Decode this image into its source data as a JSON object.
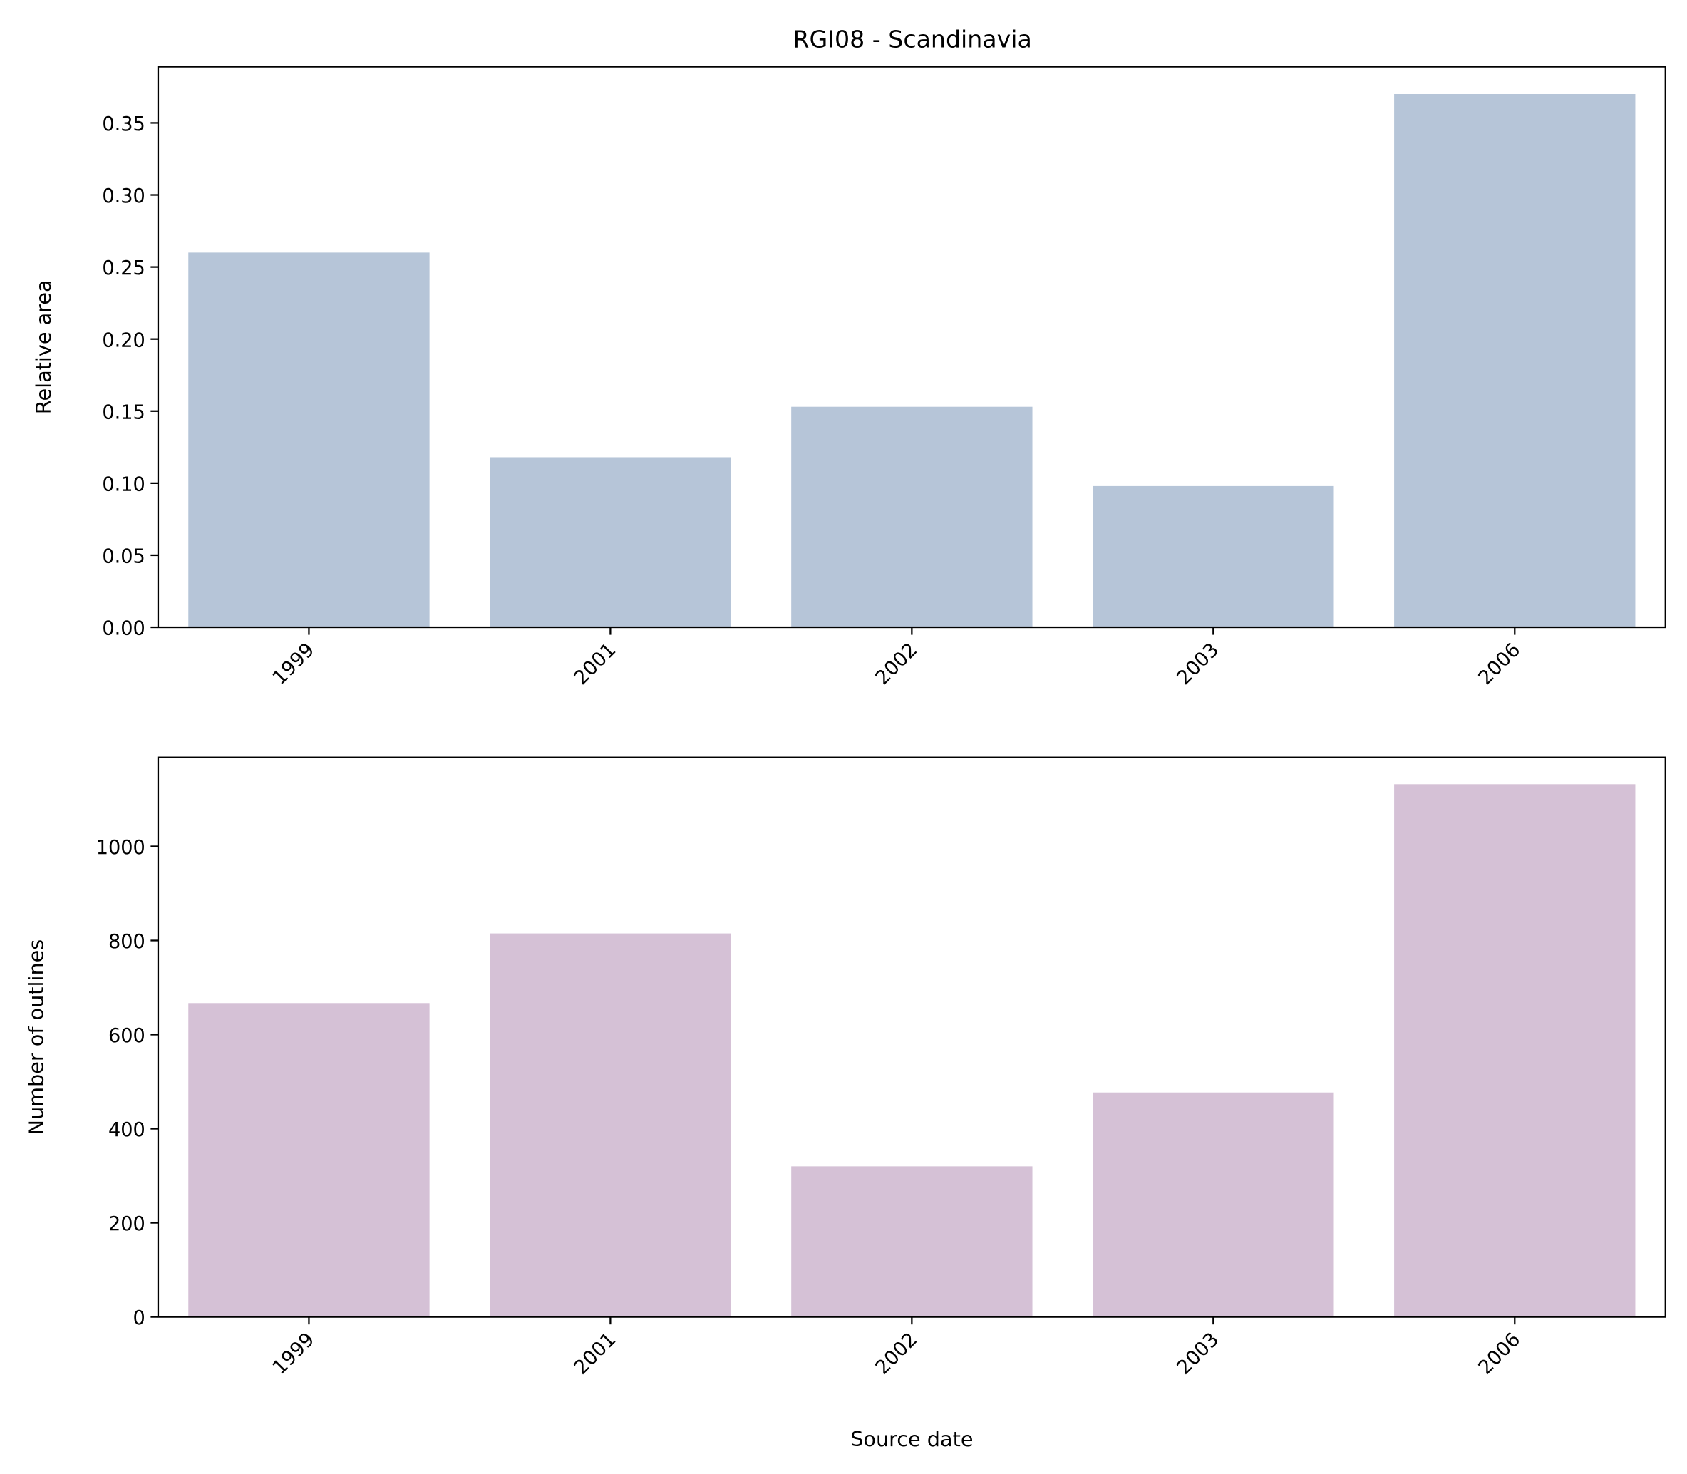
{
  "title": "RGI08 - Scandinavia",
  "chart_data": [
    {
      "type": "bar",
      "title": "RGI08 - Scandinavia",
      "xlabel": "",
      "ylabel": "Relative area",
      "categories": [
        "1999",
        "2001",
        "2002",
        "2003",
        "2006"
      ],
      "values": [
        0.26,
        0.118,
        0.153,
        0.098,
        0.37
      ],
      "ylim": [
        0,
        0.389
      ],
      "yticks": [
        0,
        0.05,
        0.1,
        0.15,
        0.2,
        0.25,
        0.3,
        0.35
      ],
      "ytick_labels": [
        "0.00",
        "0.05",
        "0.10",
        "0.15",
        "0.20",
        "0.25",
        "0.30",
        "0.35"
      ],
      "color": "#b6c5d8",
      "grid": false
    },
    {
      "type": "bar",
      "xlabel": "Source date",
      "ylabel": "Number of outlines",
      "categories": [
        "1999",
        "2001",
        "2002",
        "2003",
        "2006"
      ],
      "values": [
        667,
        815,
        320,
        477,
        1132
      ],
      "ylim": [
        0,
        1189
      ],
      "yticks": [
        0,
        200,
        400,
        600,
        800,
        1000
      ],
      "ytick_labels": [
        "0",
        "200",
        "400",
        "600",
        "800",
        "1000"
      ],
      "color": "#d5c1d6",
      "grid": false
    }
  ]
}
